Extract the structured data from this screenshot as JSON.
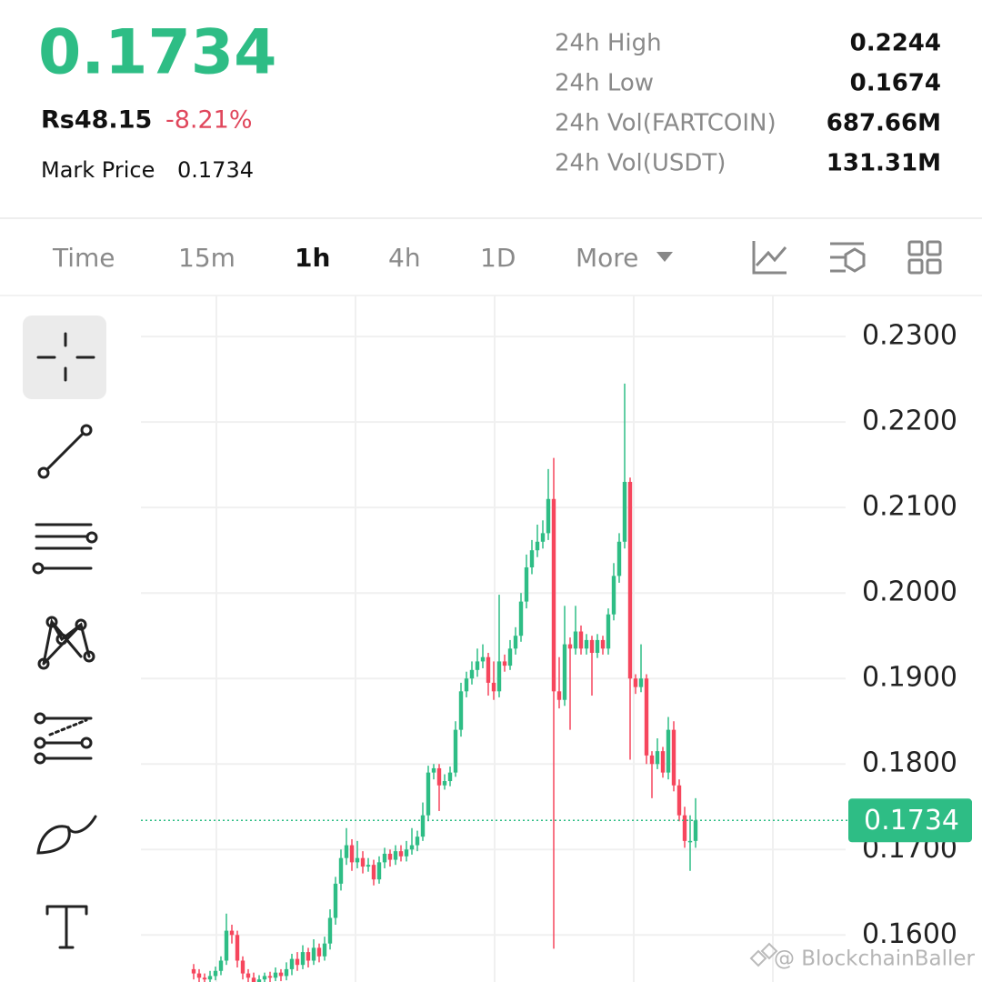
{
  "header": {
    "price": "0.1734",
    "fiat_price": "Rs48.15",
    "change": "-8.21%",
    "mark_price_label": "Mark Price",
    "mark_price": "0.1734"
  },
  "stats": [
    {
      "label": "24h High",
      "value": "0.2244"
    },
    {
      "label": "24h Low",
      "value": "0.1674"
    },
    {
      "label": "24h Vol(FARTCOIN)",
      "value": "687.66M"
    },
    {
      "label": "24h Vol(USDT)",
      "value": "131.31M"
    }
  ],
  "tabs": [
    "Time",
    "15m",
    "1h",
    "4h",
    "1D",
    "More"
  ],
  "watermark": "@ BlockchainBaller",
  "chart_data": {
    "type": "candlestick",
    "up_color": "#2ebd85",
    "down_color": "#f6465d",
    "grid": true,
    "ylim": [
      0.1545,
      0.2348
    ],
    "yticks": [
      {
        "value": 0.16,
        "label": "0.1600"
      },
      {
        "value": 0.17,
        "label": "0.1700"
      },
      {
        "value": 0.18,
        "label": "0.1800"
      },
      {
        "value": 0.19,
        "label": "0.1900"
      },
      {
        "value": 0.2,
        "label": "0.2000"
      },
      {
        "value": 0.21,
        "label": "0.2100"
      },
      {
        "value": 0.22,
        "label": "0.2200"
      },
      {
        "value": 0.23,
        "label": "0.2300"
      }
    ],
    "last_price": 0.1734,
    "open": [
      0.156,
      0.1555,
      0.155,
      0.1548,
      0.1552,
      0.1558,
      0.157,
      0.1605,
      0.16,
      0.157,
      0.1555,
      0.155,
      0.1545,
      0.1548,
      0.1552,
      0.155,
      0.1556,
      0.1552,
      0.156,
      0.1572,
      0.1565,
      0.158,
      0.157,
      0.1585,
      0.1575,
      0.159,
      0.162,
      0.166,
      0.169,
      0.1705,
      0.1685,
      0.169,
      0.168,
      0.1682,
      0.1665,
      0.1685,
      0.1695,
      0.1688,
      0.1698,
      0.1692,
      0.17,
      0.1705,
      0.1715,
      0.174,
      0.179,
      0.1795,
      0.1775,
      0.178,
      0.179,
      0.184,
      0.1885,
      0.19,
      0.191,
      0.192,
      0.1925,
      0.1895,
      0.1885,
      0.192,
      0.1915,
      0.1935,
      0.195,
      0.199,
      0.203,
      0.205,
      0.206,
      0.207,
      0.211,
      0.1885,
      0.1875,
      0.194,
      0.1935,
      0.1955,
      0.1935,
      0.1945,
      0.193,
      0.1945,
      0.1935,
      0.1975,
      0.202,
      0.206,
      0.213,
      0.19,
      0.189,
      0.19,
      0.181,
      0.18,
      0.1815,
      0.179,
      0.184,
      0.1775,
      0.174,
      0.171,
      0.171
    ],
    "high": [
      0.1566,
      0.156,
      0.1555,
      0.1558,
      0.1563,
      0.1575,
      0.1625,
      0.1612,
      0.1605,
      0.1575,
      0.156,
      0.1556,
      0.1553,
      0.1556,
      0.1557,
      0.1562,
      0.156,
      0.1568,
      0.1578,
      0.158,
      0.1588,
      0.1585,
      0.1595,
      0.159,
      0.1598,
      0.163,
      0.1668,
      0.17,
      0.1725,
      0.1712,
      0.171,
      0.1698,
      0.169,
      0.1688,
      0.1692,
      0.1702,
      0.17,
      0.1705,
      0.1705,
      0.171,
      0.1725,
      0.1722,
      0.1755,
      0.1798,
      0.18,
      0.18,
      0.1788,
      0.1797,
      0.185,
      0.1895,
      0.1908,
      0.192,
      0.1935,
      0.194,
      0.193,
      0.192,
      0.1998,
      0.1928,
      0.1945,
      0.196,
      0.2,
      0.2045,
      0.2062,
      0.208,
      0.2085,
      0.2145,
      0.2158,
      0.1925,
      0.1985,
      0.1948,
      0.1985,
      0.1962,
      0.1952,
      0.195,
      0.1952,
      0.195,
      0.1982,
      0.2035,
      0.207,
      0.2245,
      0.2135,
      0.1905,
      0.194,
      0.1905,
      0.1815,
      0.183,
      0.182,
      0.1855,
      0.185,
      0.1782,
      0.175,
      0.174,
      0.176
    ],
    "low": [
      0.1548,
      0.1544,
      0.1542,
      0.1543,
      0.1547,
      0.1553,
      0.1565,
      0.159,
      0.1562,
      0.1548,
      0.1545,
      0.154,
      0.1541,
      0.1543,
      0.1545,
      0.1546,
      0.1546,
      0.1547,
      0.1553,
      0.1558,
      0.156,
      0.1562,
      0.1565,
      0.1568,
      0.157,
      0.1583,
      0.1612,
      0.1652,
      0.1682,
      0.1675,
      0.1678,
      0.1672,
      0.1674,
      0.1658,
      0.166,
      0.1678,
      0.168,
      0.1682,
      0.1686,
      0.1686,
      0.1694,
      0.1698,
      0.171,
      0.1733,
      0.1782,
      0.1745,
      0.177,
      0.1774,
      0.1785,
      0.1832,
      0.1878,
      0.1893,
      0.1902,
      0.1912,
      0.188,
      0.1875,
      0.1878,
      0.1908,
      0.191,
      0.1928,
      0.1943,
      0.1982,
      0.2022,
      0.2042,
      0.2052,
      0.2062,
      0.1584,
      0.1865,
      0.1868,
      0.184,
      0.1928,
      0.1928,
      0.1928,
      0.188,
      0.1924,
      0.1928,
      0.1928,
      0.1968,
      0.2012,
      0.2052,
      0.1805,
      0.1882,
      0.1884,
      0.18,
      0.176,
      0.1794,
      0.1784,
      0.1782,
      0.1768,
      0.1733,
      0.1702,
      0.1675,
      0.1702
    ],
    "close": [
      0.1555,
      0.155,
      0.1548,
      0.1552,
      0.1558,
      0.157,
      0.1605,
      0.16,
      0.157,
      0.1555,
      0.155,
      0.1545,
      0.1548,
      0.1552,
      0.155,
      0.1556,
      0.1552,
      0.156,
      0.1572,
      0.1565,
      0.158,
      0.157,
      0.1585,
      0.1575,
      0.159,
      0.162,
      0.166,
      0.169,
      0.1705,
      0.1685,
      0.169,
      0.168,
      0.1682,
      0.1665,
      0.1685,
      0.1695,
      0.1688,
      0.1698,
      0.1692,
      0.17,
      0.1705,
      0.1715,
      0.174,
      0.179,
      0.1795,
      0.1775,
      0.178,
      0.179,
      0.184,
      0.1885,
      0.19,
      0.191,
      0.192,
      0.1925,
      0.1895,
      0.1885,
      0.192,
      0.1915,
      0.1935,
      0.195,
      0.199,
      0.203,
      0.205,
      0.206,
      0.207,
      0.211,
      0.1885,
      0.1875,
      0.194,
      0.1935,
      0.1955,
      0.1935,
      0.1945,
      0.193,
      0.1945,
      0.1935,
      0.1975,
      0.202,
      0.206,
      0.213,
      0.19,
      0.189,
      0.19,
      0.181,
      0.18,
      0.1815,
      0.179,
      0.184,
      0.1775,
      0.174,
      0.171,
      0.171,
      0.1734
    ]
  }
}
